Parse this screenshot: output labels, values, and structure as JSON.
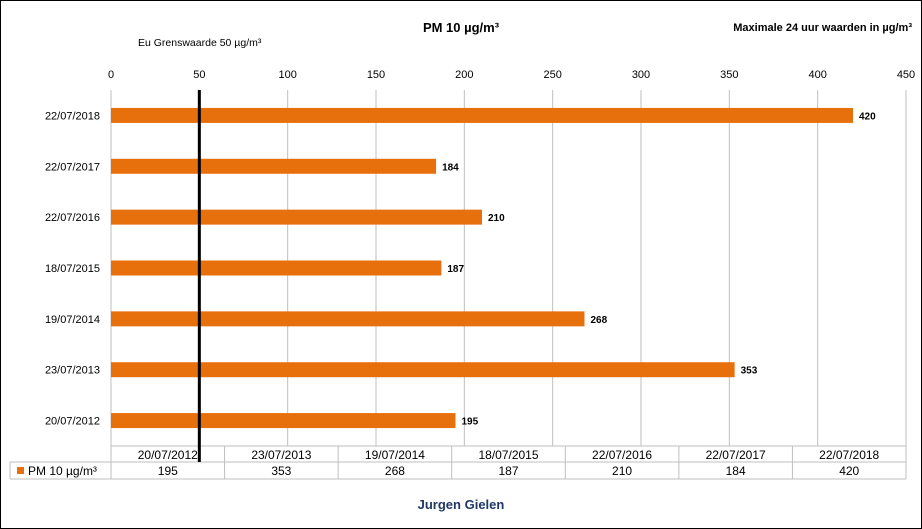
{
  "title": "PM 10  µg/m³",
  "subtitle": "Maximale  24 uur waarden in µg/m³",
  "limit_label": "Eu Grenswaarde 50 µg/m³",
  "author": "Jurgen Gielen",
  "colors": {
    "bar": "#e8700c",
    "limit_line": "#000000",
    "grid": "#bfbfbf",
    "author": "#1f3864"
  },
  "chart_data": {
    "type": "bar",
    "orientation": "horizontal",
    "xlim": [
      0,
      450
    ],
    "x_ticks": [
      0,
      50,
      100,
      150,
      200,
      250,
      300,
      350,
      400,
      450
    ],
    "categories": [
      "20/07/2012",
      "23/07/2013",
      "19/07/2014",
      "18/07/2015",
      "22/07/2016",
      "22/07/2017",
      "22/07/2018"
    ],
    "series": [
      {
        "name": "PM 10  µg/m³",
        "values": [
          195,
          353,
          268,
          187,
          210,
          184,
          420
        ]
      }
    ],
    "reference_line": {
      "value": 50
    },
    "data_table": true,
    "grid": true
  }
}
